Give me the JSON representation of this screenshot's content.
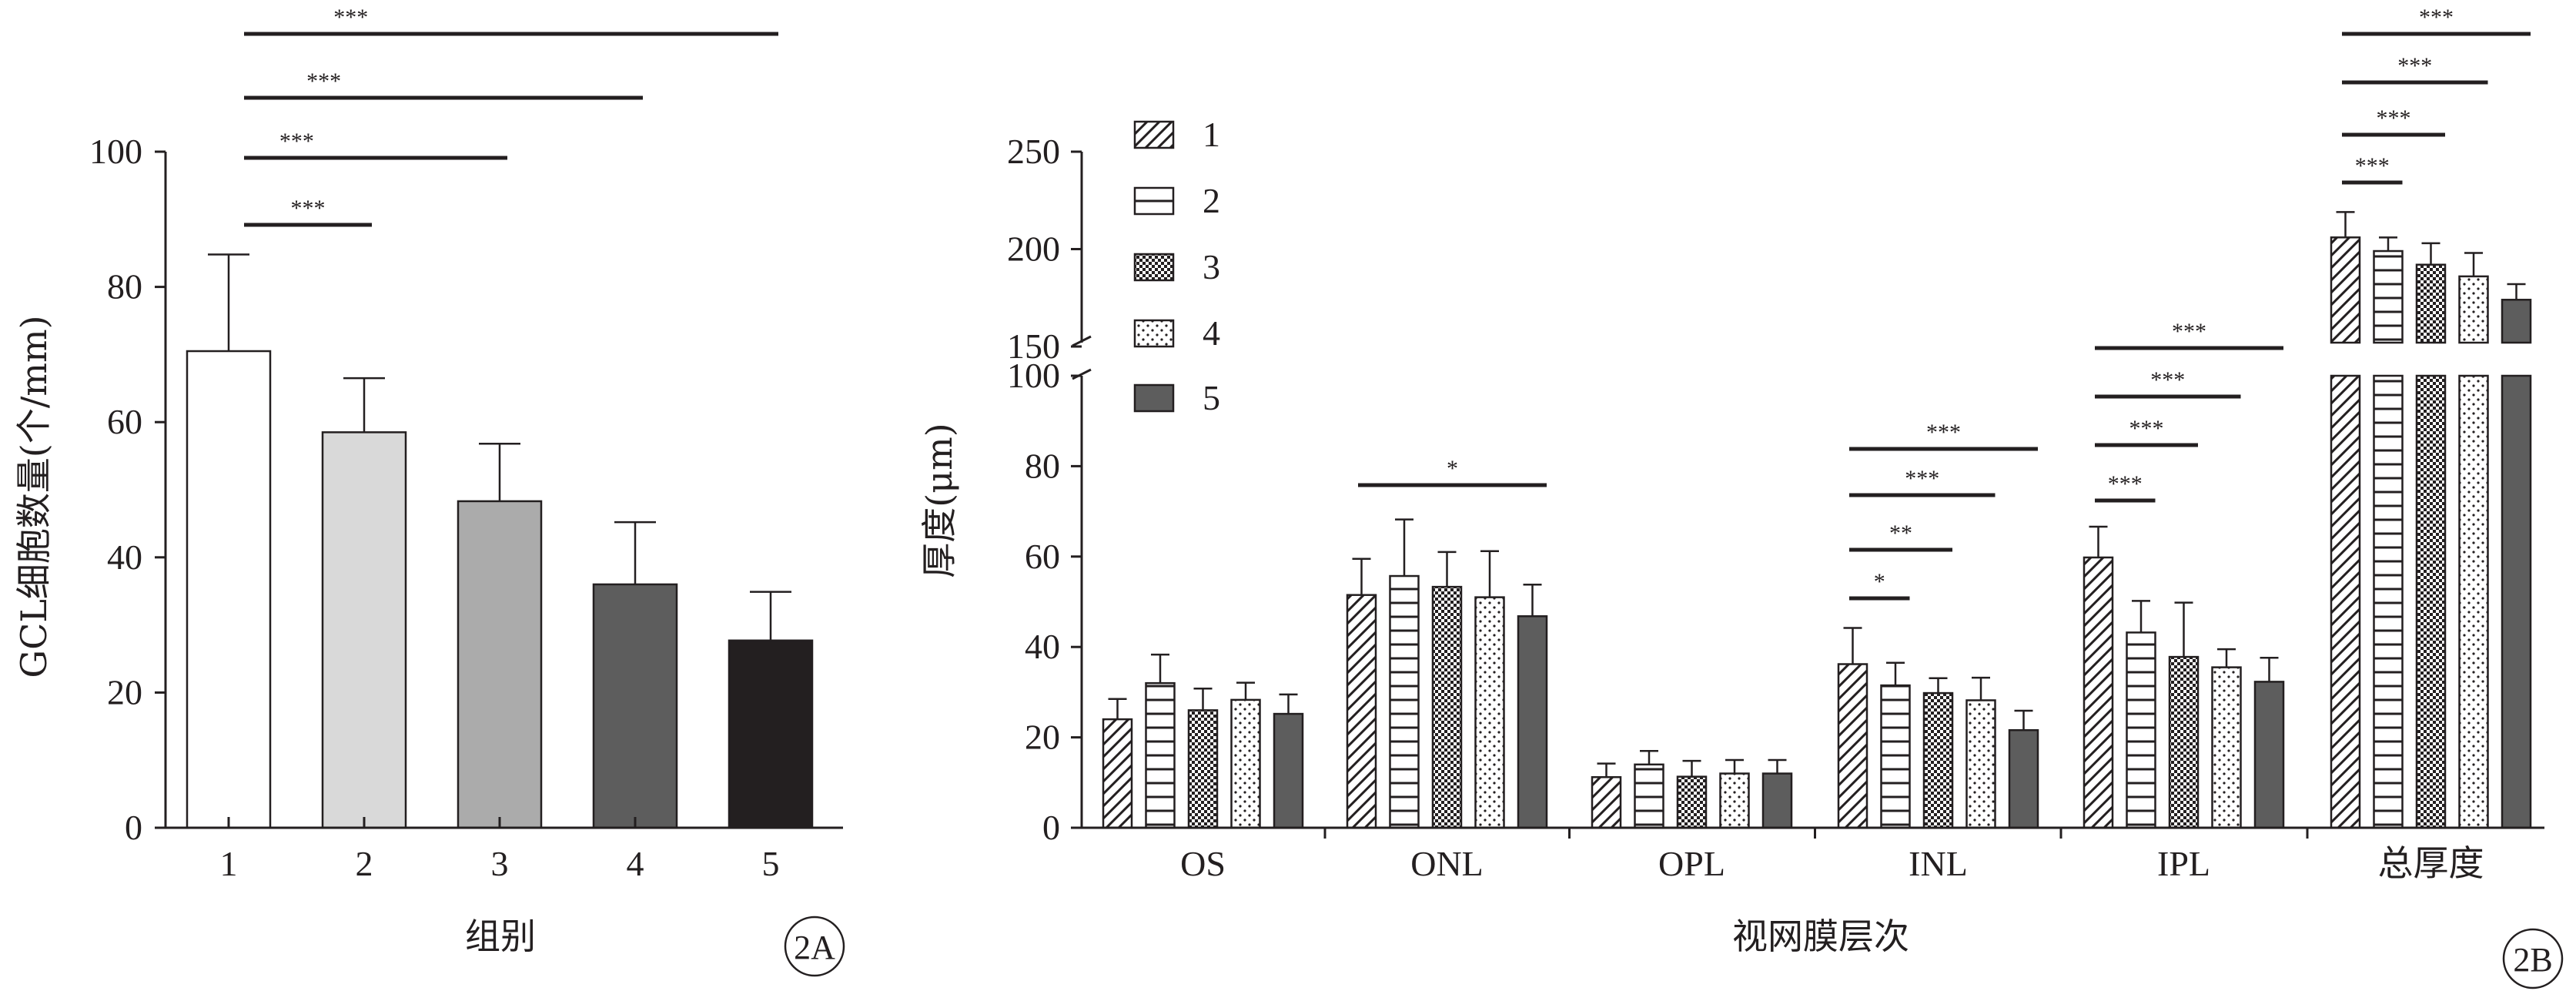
{
  "chart_data": [
    {
      "type": "bar",
      "panel_label": "2A",
      "xlabel": "组别",
      "ylabel": "GCL细胞数量(个/mm)",
      "ylim": [
        0,
        100
      ],
      "yticks": [
        "0",
        "20",
        "40",
        "60",
        "80",
        "100"
      ],
      "categories": [
        "1",
        "2",
        "3",
        "4",
        "5"
      ],
      "values": [
        70.5,
        58.5,
        48.3,
        36.0,
        27.7
      ],
      "errors": [
        14.3,
        8.0,
        8.5,
        9.2,
        7.2
      ],
      "fills": [
        "#ffffff",
        "#d9d9d9",
        "#ababab",
        "#5d5d5d",
        "#231f20"
      ],
      "significance": [
        {
          "from": "1",
          "to": "2",
          "label": "***"
        },
        {
          "from": "1",
          "to": "3",
          "label": "***"
        },
        {
          "from": "1",
          "to": "4",
          "label": "***"
        },
        {
          "from": "1",
          "to": "5",
          "label": "***"
        }
      ]
    },
    {
      "type": "bar",
      "panel_label": "2B",
      "xlabel": "视网膜层次",
      "ylabel": "厚度(μm)",
      "axis_break": "100-150",
      "yticks_lower": [
        "0",
        "20",
        "40",
        "60",
        "80",
        "100"
      ],
      "yticks_upper": [
        "150",
        "200",
        "250"
      ],
      "categories": [
        "OS",
        "ONL",
        "OPL",
        "INL",
        "IPL",
        "总厚度"
      ],
      "series": [
        {
          "name": "1",
          "pattern": "diagonal-hatch",
          "values": [
            24,
            51.5,
            11.2,
            36.2,
            59.8,
            206
          ],
          "errors": [
            4.5,
            8,
            3,
            8,
            6.8,
            13
          ]
        },
        {
          "name": "2",
          "pattern": "horizontal-lines",
          "values": [
            32,
            55.7,
            14,
            31.5,
            43.2,
            199
          ],
          "errors": [
            6.3,
            12.5,
            3,
            5,
            7,
            7
          ]
        },
        {
          "name": "3",
          "pattern": "checkerboard",
          "values": [
            26,
            53.3,
            11.3,
            29.8,
            37.8,
            192
          ],
          "errors": [
            4.8,
            7.7,
            3.5,
            3.3,
            12,
            11
          ]
        },
        {
          "name": "4",
          "pattern": "dots",
          "values": [
            28.3,
            51,
            12,
            28.2,
            35.5,
            186
          ],
          "errors": [
            3.8,
            10.2,
            3,
            5,
            4,
            12
          ]
        },
        {
          "name": "5",
          "pattern": "solid-dark",
          "values": [
            25.2,
            46.8,
            12,
            21.6,
            32.3,
            174
          ],
          "errors": [
            4.3,
            7,
            3,
            4.3,
            5.3,
            8
          ]
        }
      ],
      "significance": [
        {
          "category": "ONL",
          "from": "1",
          "to": "5",
          "label": "*"
        },
        {
          "category": "INL",
          "from": "1",
          "to": "2",
          "label": "*"
        },
        {
          "category": "INL",
          "from": "1",
          "to": "3",
          "label": "**"
        },
        {
          "category": "INL",
          "from": "1",
          "to": "4",
          "label": "***"
        },
        {
          "category": "INL",
          "from": "1",
          "to": "5",
          "label": "***"
        },
        {
          "category": "IPL",
          "from": "1",
          "to": "2",
          "label": "***"
        },
        {
          "category": "IPL",
          "from": "1",
          "to": "3",
          "label": "***"
        },
        {
          "category": "IPL",
          "from": "1",
          "to": "4",
          "label": "***"
        },
        {
          "category": "IPL",
          "from": "1",
          "to": "5",
          "label": "***"
        },
        {
          "category": "总厚度",
          "from": "1",
          "to": "2",
          "label": "***"
        },
        {
          "category": "总厚度",
          "from": "1",
          "to": "3",
          "label": "***"
        },
        {
          "category": "总厚度",
          "from": "1",
          "to": "4",
          "label": "***"
        },
        {
          "category": "总厚度",
          "from": "1",
          "to": "5",
          "label": "***"
        }
      ],
      "legend": [
        "1",
        "2",
        "3",
        "4",
        "5"
      ],
      "legend_position": "top-left"
    }
  ]
}
